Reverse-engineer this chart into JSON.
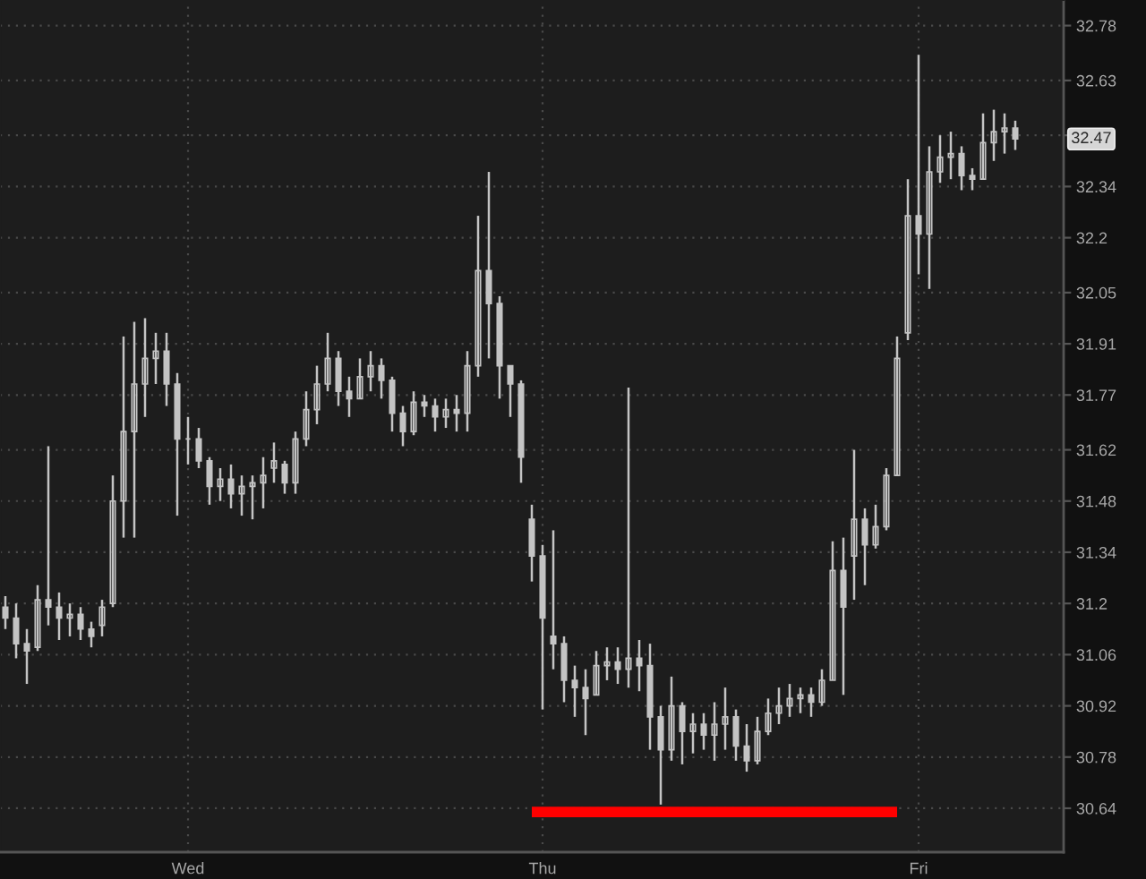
{
  "chart_data": {
    "type": "candlestick",
    "categories": [
      null,
      null,
      null,
      null,
      null,
      null,
      null,
      null,
      null,
      null,
      null,
      null,
      null,
      null,
      null,
      null,
      null,
      "Wed",
      null,
      null,
      null,
      null,
      null,
      null,
      null,
      null,
      null,
      null,
      null,
      null,
      null,
      null,
      null,
      null,
      null,
      null,
      null,
      null,
      null,
      null,
      null,
      null,
      null,
      null,
      null,
      null,
      null,
      null,
      null,
      null,
      "Thu",
      null,
      null,
      null,
      null,
      null,
      null,
      null,
      null,
      null,
      null,
      null,
      null,
      null,
      null,
      null,
      null,
      null,
      null,
      null,
      null,
      null,
      null,
      null,
      null,
      null,
      null,
      null,
      null,
      null,
      null,
      null,
      null,
      null,
      null,
      "Fri",
      null,
      null,
      null,
      null,
      null,
      null,
      null,
      null,
      null,
      null,
      null,
      null,
      null
    ],
    "ylim": [
      30.52,
      32.85
    ],
    "yticks": [
      30.64,
      30.78,
      30.92,
      31.06,
      31.2,
      31.34,
      31.48,
      31.62,
      31.77,
      31.91,
      32.05,
      32.2,
      32.34,
      {
        "value": 32.48,
        "label": null
      },
      32.63,
      32.78
    ],
    "grid": true,
    "annotations": [
      {
        "text": "32.47",
        "y": 32.47
      }
    ],
    "series": [
      {
        "color": "#c4c4c4",
        "ohlc": [
          [
            31.19,
            31.22,
            31.13,
            31.16
          ],
          [
            31.16,
            31.2,
            31.05,
            31.09
          ],
          [
            31.09,
            31.13,
            30.98,
            31.07
          ],
          [
            31.08,
            31.25,
            31.07,
            31.21
          ],
          [
            31.21,
            31.63,
            31.14,
            31.19
          ],
          [
            31.19,
            31.23,
            31.1,
            31.16
          ],
          [
            31.16,
            31.2,
            31.11,
            31.17
          ],
          [
            31.17,
            31.19,
            31.1,
            31.13
          ],
          [
            31.13,
            31.15,
            31.08,
            31.11
          ],
          [
            31.14,
            31.21,
            31.11,
            31.19
          ],
          [
            31.2,
            31.55,
            31.19,
            31.48
          ],
          [
            31.48,
            31.93,
            31.38,
            31.67
          ],
          [
            31.67,
            31.97,
            31.38,
            31.8
          ],
          [
            31.8,
            31.98,
            31.71,
            31.87
          ],
          [
            31.87,
            31.94,
            31.8,
            31.89
          ],
          [
            31.89,
            31.94,
            31.74,
            31.8
          ],
          [
            31.8,
            31.83,
            31.44,
            31.65
          ],
          [
            31.65,
            31.71,
            31.58,
            31.65
          ],
          [
            31.65,
            31.68,
            31.57,
            31.59
          ],
          [
            31.59,
            31.6,
            31.47,
            31.52
          ],
          [
            31.52,
            31.57,
            31.48,
            31.54
          ],
          [
            31.54,
            31.58,
            31.46,
            31.5
          ],
          [
            31.5,
            31.55,
            31.44,
            31.52
          ],
          [
            31.52,
            31.55,
            31.43,
            31.53
          ],
          [
            31.53,
            31.6,
            31.46,
            31.55
          ],
          [
            31.57,
            31.64,
            31.53,
            31.59
          ],
          [
            31.58,
            31.59,
            31.5,
            31.53
          ],
          [
            31.53,
            31.67,
            31.5,
            31.65
          ],
          [
            31.65,
            31.78,
            31.63,
            31.73
          ],
          [
            31.73,
            31.85,
            31.69,
            31.8
          ],
          [
            31.8,
            31.94,
            31.78,
            31.87
          ],
          [
            31.87,
            31.89,
            31.74,
            31.78
          ],
          [
            31.78,
            31.82,
            31.71,
            31.76
          ],
          [
            31.76,
            31.87,
            31.76,
            31.82
          ],
          [
            31.82,
            31.89,
            31.78,
            31.85
          ],
          [
            31.85,
            31.87,
            31.76,
            31.81
          ],
          [
            31.81,
            31.82,
            31.67,
            31.72
          ],
          [
            31.72,
            31.74,
            31.63,
            31.67
          ],
          [
            31.67,
            31.78,
            31.66,
            31.75
          ],
          [
            31.75,
            31.77,
            31.71,
            31.74
          ],
          [
            31.74,
            31.76,
            31.67,
            31.71
          ],
          [
            31.71,
            31.76,
            31.68,
            31.73
          ],
          [
            31.73,
            31.77,
            31.67,
            31.72
          ],
          [
            31.72,
            31.89,
            31.67,
            31.85
          ],
          [
            31.85,
            32.26,
            31.82,
            32.11
          ],
          [
            32.11,
            32.38,
            31.87,
            32.02
          ],
          [
            32.02,
            32.04,
            31.76,
            31.85
          ],
          [
            31.85,
            31.85,
            31.71,
            31.8
          ],
          [
            31.8,
            31.81,
            31.53,
            31.6
          ],
          [
            31.43,
            31.47,
            31.26,
            31.33
          ],
          [
            31.33,
            31.36,
            30.91,
            31.16
          ],
          [
            31.11,
            31.4,
            31.02,
            31.09
          ],
          [
            31.09,
            31.11,
            30.93,
            30.99
          ],
          [
            30.99,
            31.03,
            30.89,
            30.97
          ],
          [
            30.97,
            31.02,
            30.84,
            30.94
          ],
          [
            30.95,
            31.07,
            30.95,
            31.03
          ],
          [
            31.03,
            31.08,
            30.99,
            31.04
          ],
          [
            31.04,
            31.08,
            30.98,
            31.02
          ],
          [
            31.02,
            31.79,
            30.97,
            31.05
          ],
          [
            31.05,
            31.1,
            30.96,
            31.03
          ],
          [
            31.03,
            31.09,
            30.8,
            30.89
          ],
          [
            30.89,
            30.92,
            30.65,
            30.8
          ],
          [
            30.8,
            31.0,
            30.77,
            30.92
          ],
          [
            30.92,
            30.93,
            30.76,
            30.85
          ],
          [
            30.85,
            30.9,
            30.79,
            30.87
          ],
          [
            30.87,
            30.9,
            30.8,
            30.84
          ],
          [
            30.84,
            30.93,
            30.77,
            30.87
          ],
          [
            30.87,
            30.97,
            30.8,
            30.89
          ],
          [
            30.89,
            30.91,
            30.77,
            30.81
          ],
          [
            30.81,
            30.87,
            30.74,
            30.77
          ],
          [
            30.77,
            30.89,
            30.76,
            30.85
          ],
          [
            30.85,
            30.94,
            30.84,
            30.9
          ],
          [
            30.9,
            30.97,
            30.87,
            30.92
          ],
          [
            30.92,
            30.98,
            30.89,
            30.94
          ],
          [
            30.94,
            30.97,
            30.9,
            30.95
          ],
          [
            30.95,
            30.97,
            30.89,
            30.93
          ],
          [
            30.93,
            31.02,
            30.92,
            30.99
          ],
          [
            30.99,
            31.37,
            30.99,
            31.29
          ],
          [
            31.29,
            31.38,
            30.95,
            31.19
          ],
          [
            31.33,
            31.62,
            31.21,
            31.43
          ],
          [
            31.43,
            31.46,
            31.25,
            31.36
          ],
          [
            31.36,
            31.47,
            31.35,
            31.41
          ],
          [
            31.41,
            31.57,
            31.4,
            31.55
          ],
          [
            31.55,
            31.93,
            31.55,
            31.87
          ],
          [
            31.94,
            32.36,
            31.92,
            32.26
          ],
          [
            32.26,
            32.7,
            32.1,
            32.21
          ],
          [
            32.21,
            32.45,
            32.06,
            32.38
          ],
          [
            32.38,
            32.48,
            32.35,
            32.42
          ],
          [
            32.42,
            32.49,
            32.36,
            32.43
          ],
          [
            32.43,
            32.45,
            32.33,
            32.37
          ],
          [
            32.37,
            32.39,
            32.33,
            32.36
          ],
          [
            32.36,
            32.54,
            32.36,
            32.46
          ],
          [
            32.46,
            32.55,
            32.41,
            32.49
          ],
          [
            32.49,
            32.54,
            32.43,
            32.5
          ],
          [
            32.5,
            32.52,
            32.44,
            32.47
          ],
          null,
          null,
          null,
          null
        ]
      },
      {
        "type": "line",
        "color": "#ff0000",
        "values": [
          null,
          null,
          null,
          null,
          null,
          null,
          null,
          null,
          null,
          null,
          null,
          null,
          null,
          null,
          null,
          null,
          null,
          null,
          null,
          null,
          null,
          null,
          null,
          null,
          null,
          null,
          null,
          null,
          null,
          null,
          null,
          null,
          null,
          null,
          null,
          null,
          null,
          null,
          null,
          null,
          null,
          null,
          null,
          null,
          null,
          null,
          null,
          null,
          null,
          30.63,
          30.63,
          30.63,
          30.63,
          30.63,
          30.63,
          30.63,
          30.63,
          30.63,
          30.63,
          30.63,
          30.63,
          30.63,
          30.63,
          30.63,
          30.63,
          30.63,
          30.63,
          30.63,
          30.63,
          30.63,
          30.63,
          30.63,
          30.63,
          30.63,
          30.63,
          30.63,
          30.63,
          30.63,
          30.63,
          30.63,
          30.63,
          30.63,
          30.63,
          30.63,
          null,
          null,
          null,
          null,
          null,
          null,
          null,
          null,
          null,
          null,
          null,
          null,
          null,
          null,
          null
        ]
      }
    ]
  }
}
